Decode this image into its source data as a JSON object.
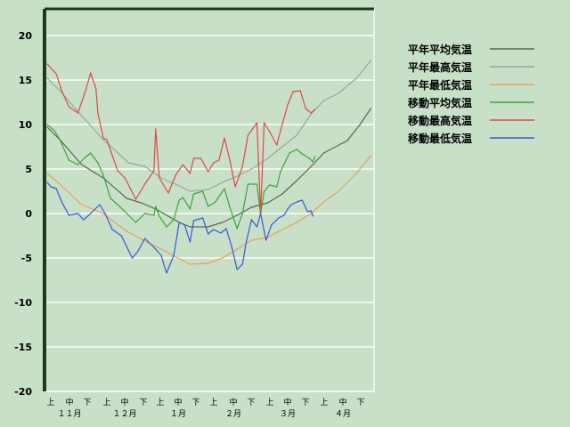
{
  "chart_data": {
    "type": "line",
    "title": "",
    "xlabel": "",
    "ylabel": "",
    "ylim": [
      -20,
      20
    ],
    "yticks": [
      20,
      15,
      10,
      5,
      0,
      -5,
      -10,
      -15,
      -20
    ],
    "grid": true,
    "legend_position": "right",
    "x_months": [
      "１１月",
      "１２月",
      "１月",
      "２月",
      "３月",
      "４月"
    ],
    "x_dekads": [
      "上",
      "中",
      "下"
    ],
    "series": [
      {
        "name": "平年平均気温",
        "color": "#506a50",
        "points": [
          [
            "11/02",
            9.7
          ],
          [
            "11/09",
            8.3
          ],
          [
            "11/21",
            5.5
          ],
          [
            "12/03",
            4.0
          ],
          [
            "12/16",
            1.7
          ],
          [
            "12/24",
            1.2
          ],
          [
            "01/01",
            0.5
          ],
          [
            "01/14",
            -1.0
          ],
          [
            "01/20",
            -1.5
          ],
          [
            "01/30",
            -1.5
          ],
          [
            "02/07",
            -1.0
          ],
          [
            "02/15",
            -0.2
          ],
          [
            "02/23",
            0.7
          ],
          [
            "03/04",
            1.2
          ],
          [
            "03/12",
            2.2
          ],
          [
            "03/20",
            3.7
          ],
          [
            "03/28",
            5.3
          ],
          [
            "04/04",
            6.8
          ],
          [
            "04/17",
            8.2
          ],
          [
            "04/24",
            10.0
          ],
          [
            "04/30",
            11.8
          ]
        ]
      },
      {
        "name": "平年最高気温",
        "color": "#98a898",
        "points": [
          [
            "11/02",
            15.2
          ],
          [
            "11/09",
            13.8
          ],
          [
            "11/21",
            11.0
          ],
          [
            "12/03",
            8.3
          ],
          [
            "12/17",
            5.7
          ],
          [
            "12/26",
            5.3
          ],
          [
            "01/04",
            4.0
          ],
          [
            "01/13",
            3.2
          ],
          [
            "01/20",
            2.5
          ],
          [
            "01/30",
            2.7
          ],
          [
            "02/07",
            3.5
          ],
          [
            "02/15",
            4.2
          ],
          [
            "02/23",
            5.0
          ],
          [
            "03/04",
            6.2
          ],
          [
            "03/12",
            7.5
          ],
          [
            "03/20",
            8.8
          ],
          [
            "03/28",
            11.2
          ],
          [
            "04/04",
            12.7
          ],
          [
            "04/12",
            13.5
          ],
          [
            "04/22",
            15.2
          ],
          [
            "04/30",
            17.2
          ]
        ]
      },
      {
        "name": "平年最低気温",
        "color": "#e8a058",
        "points": [
          [
            "11/02",
            4.5
          ],
          [
            "11/09",
            3.3
          ],
          [
            "11/21",
            1.0
          ],
          [
            "12/03",
            0.0
          ],
          [
            "12/16",
            -2.0
          ],
          [
            "12/28",
            -3.3
          ],
          [
            "01/06",
            -4.2
          ],
          [
            "01/13",
            -5.0
          ],
          [
            "01/20",
            -5.7
          ],
          [
            "01/30",
            -5.6
          ],
          [
            "02/07",
            -5.0
          ],
          [
            "02/15",
            -4.0
          ],
          [
            "02/23",
            -3.0
          ],
          [
            "03/04",
            -2.7
          ],
          [
            "03/12",
            -1.8
          ],
          [
            "03/20",
            -1.0
          ],
          [
            "03/28",
            0.0
          ],
          [
            "04/04",
            1.3
          ],
          [
            "04/12",
            2.5
          ],
          [
            "04/22",
            4.5
          ],
          [
            "04/30",
            6.5
          ]
        ]
      },
      {
        "name": "移動平均気温",
        "color": "#38a838",
        "points": [
          [
            "11/02",
            10.0
          ],
          [
            "11/06",
            9.3
          ],
          [
            "11/09",
            8.3
          ],
          [
            "11/14",
            6.0
          ],
          [
            "11/19",
            5.5
          ],
          [
            "11/23",
            6.3
          ],
          [
            "11/26",
            6.8
          ],
          [
            "11/30",
            5.7
          ],
          [
            "12/03",
            4.3
          ],
          [
            "12/07",
            1.7
          ],
          [
            "12/12",
            0.8
          ],
          [
            "12/21",
            -1.0
          ],
          [
            "12/26",
            0.0
          ],
          [
            "12/31",
            -0.2
          ],
          [
            "01/01",
            0.8
          ],
          [
            "01/03",
            -0.3
          ],
          [
            "01/07",
            -1.5
          ],
          [
            "01/11",
            -0.7
          ],
          [
            "01/14",
            1.5
          ],
          [
            "01/16",
            1.8
          ],
          [
            "01/20",
            0.5
          ],
          [
            "01/22",
            2.2
          ],
          [
            "01/27",
            2.5
          ],
          [
            "01/30",
            0.8
          ],
          [
            "02/03",
            1.3
          ],
          [
            "02/08",
            2.8
          ],
          [
            "02/11",
            0.7
          ],
          [
            "02/15",
            -1.7
          ],
          [
            "02/18",
            0.0
          ],
          [
            "02/21",
            3.3
          ],
          [
            "02/26",
            3.3
          ],
          [
            "02/28",
            0.0
          ],
          [
            "03/02",
            2.5
          ],
          [
            "03/05",
            3.2
          ],
          [
            "03/09",
            3.0
          ],
          [
            "03/11",
            4.7
          ],
          [
            "03/16",
            6.8
          ],
          [
            "03/20",
            7.2
          ],
          [
            "03/23",
            6.7
          ],
          [
            "03/27",
            6.2
          ],
          [
            "03/29",
            5.8
          ],
          [
            "03/30",
            6.4
          ]
        ]
      },
      {
        "name": "移動最高気温",
        "color": "#e04848",
        "points": [
          [
            "11/02",
            16.8
          ],
          [
            "11/07",
            15.7
          ],
          [
            "11/10",
            13.8
          ],
          [
            "11/14",
            12.0
          ],
          [
            "11/19",
            11.3
          ],
          [
            "11/23",
            13.7
          ],
          [
            "11/26",
            15.8
          ],
          [
            "11/29",
            14.0
          ],
          [
            "11/30",
            11.3
          ],
          [
            "12/03",
            8.5
          ],
          [
            "12/05",
            8.3
          ],
          [
            "12/08",
            6.5
          ],
          [
            "12/11",
            4.8
          ],
          [
            "12/15",
            4.0
          ],
          [
            "12/21",
            1.6
          ],
          [
            "12/26",
            3.3
          ],
          [
            "12/31",
            4.8
          ],
          [
            "01/01",
            9.5
          ],
          [
            "01/03",
            4.0
          ],
          [
            "01/08",
            2.3
          ],
          [
            "01/12",
            4.3
          ],
          [
            "01/16",
            5.5
          ],
          [
            "01/20",
            4.5
          ],
          [
            "01/22",
            6.2
          ],
          [
            "01/26",
            6.2
          ],
          [
            "01/30",
            4.7
          ],
          [
            "02/02",
            5.7
          ],
          [
            "02/05",
            6.0
          ],
          [
            "02/08",
            8.5
          ],
          [
            "02/11",
            6.0
          ],
          [
            "02/14",
            3.0
          ],
          [
            "02/18",
            5.3
          ],
          [
            "02/21",
            8.8
          ],
          [
            "02/26",
            10.2
          ],
          [
            "02/28",
            0.0
          ],
          [
            "03/02",
            10.2
          ],
          [
            "03/05",
            9.2
          ],
          [
            "03/09",
            7.7
          ],
          [
            "03/11",
            9.3
          ],
          [
            "03/15",
            12.2
          ],
          [
            "03/18",
            13.7
          ],
          [
            "03/22",
            13.8
          ],
          [
            "03/25",
            11.8
          ],
          [
            "03/28",
            11.3
          ],
          [
            "03/30",
            11.7
          ]
        ]
      },
      {
        "name": "移動最低気温",
        "color": "#3858d8",
        "points": [
          [
            "11/02",
            3.5
          ],
          [
            "11/04",
            3.0
          ],
          [
            "11/07",
            2.8
          ],
          [
            "11/10",
            1.3
          ],
          [
            "11/14",
            -0.2
          ],
          [
            "11/19",
            0.0
          ],
          [
            "11/22",
            -0.7
          ],
          [
            "11/25",
            -0.2
          ],
          [
            "12/01",
            1.0
          ],
          [
            "12/04",
            0.0
          ],
          [
            "12/08",
            -1.8
          ],
          [
            "12/13",
            -2.5
          ],
          [
            "12/19",
            -5.0
          ],
          [
            "12/22",
            -4.3
          ],
          [
            "12/26",
            -2.8
          ],
          [
            "12/31",
            -3.8
          ],
          [
            "01/04",
            -4.7
          ],
          [
            "01/07",
            -6.7
          ],
          [
            "01/11",
            -4.7
          ],
          [
            "01/14",
            -1.0
          ],
          [
            "01/17",
            -1.3
          ],
          [
            "01/20",
            -3.2
          ],
          [
            "01/22",
            -0.8
          ],
          [
            "01/27",
            -0.5
          ],
          [
            "01/30",
            -2.3
          ],
          [
            "02/02",
            -1.8
          ],
          [
            "02/06",
            -2.2
          ],
          [
            "02/09",
            -1.7
          ],
          [
            "02/12",
            -3.7
          ],
          [
            "02/15",
            -6.3
          ],
          [
            "02/18",
            -5.7
          ],
          [
            "02/20",
            -3.3
          ],
          [
            "02/23",
            -0.7
          ],
          [
            "02/26",
            -1.5
          ],
          [
            "02/28",
            0.0
          ],
          [
            "03/03",
            -3.0
          ],
          [
            "03/06",
            -1.3
          ],
          [
            "03/10",
            -0.5
          ],
          [
            "03/13",
            -0.2
          ],
          [
            "03/15",
            0.5
          ],
          [
            "03/17",
            1.0
          ],
          [
            "03/20",
            1.3
          ],
          [
            "03/23",
            1.5
          ],
          [
            "03/26",
            0.2
          ],
          [
            "03/28",
            0.3
          ],
          [
            "03/29",
            -0.3
          ]
        ]
      }
    ]
  }
}
